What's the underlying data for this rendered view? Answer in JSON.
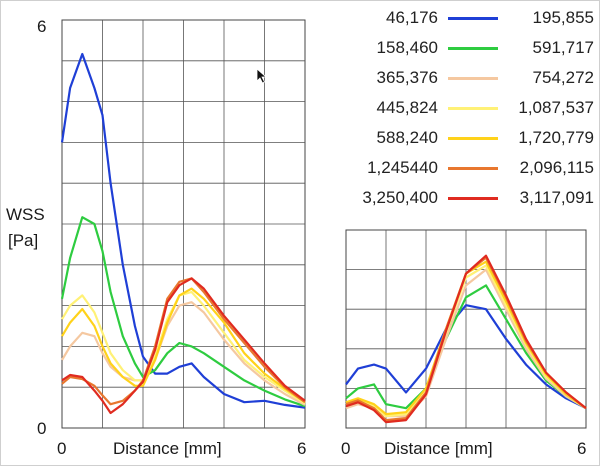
{
  "chart_data": [
    {
      "type": "line",
      "ylabel_lines": [
        "WSS",
        "[Pa]"
      ],
      "xlabel": "Distance [mm]",
      "xlim": [
        0,
        6
      ],
      "ylim": [
        0,
        6
      ],
      "x_tick_labels": [
        "0",
        "6"
      ],
      "y_tick_labels": [
        "0",
        "6"
      ],
      "grid": true,
      "series": [
        {
          "color": "#1f3fd6",
          "x": [
            0,
            0.2,
            0.5,
            0.8,
            1.0,
            1.2,
            1.5,
            1.8,
            2.0,
            2.3,
            2.6,
            2.9,
            3.2,
            3.5,
            4.0,
            4.5,
            5.0,
            5.5,
            6.0
          ],
          "y": [
            4.2,
            5.0,
            5.5,
            5.0,
            4.6,
            3.6,
            2.4,
            1.5,
            1.05,
            0.8,
            0.8,
            0.9,
            0.95,
            0.75,
            0.5,
            0.38,
            0.4,
            0.34,
            0.3
          ]
        },
        {
          "color": "#2ecc40",
          "x": [
            0,
            0.2,
            0.5,
            0.8,
            1.0,
            1.2,
            1.5,
            1.8,
            2.0,
            2.3,
            2.6,
            2.9,
            3.2,
            3.5,
            4.0,
            4.5,
            5.0,
            5.5,
            6.0
          ],
          "y": [
            1.9,
            2.5,
            3.1,
            3.0,
            2.6,
            2.0,
            1.35,
            0.95,
            0.75,
            0.85,
            1.1,
            1.25,
            1.2,
            1.1,
            0.9,
            0.7,
            0.55,
            0.42,
            0.32
          ]
        },
        {
          "color": "#f5c8a0",
          "x": [
            0,
            0.2,
            0.5,
            0.8,
            1.0,
            1.2,
            1.5,
            1.8,
            2.0,
            2.3,
            2.6,
            2.9,
            3.2,
            3.5,
            4.0,
            4.5,
            5.0,
            5.5,
            6.0
          ],
          "y": [
            1.0,
            1.2,
            1.4,
            1.35,
            1.1,
            0.9,
            0.75,
            0.7,
            0.7,
            1.0,
            1.5,
            1.8,
            1.85,
            1.7,
            1.3,
            0.95,
            0.7,
            0.5,
            0.34
          ]
        },
        {
          "color": "#fff176",
          "x": [
            0,
            0.2,
            0.5,
            0.8,
            1.0,
            1.2,
            1.5,
            1.8,
            2.0,
            2.3,
            2.6,
            2.9,
            3.2,
            3.5,
            4.0,
            4.5,
            5.0,
            5.5,
            6.0
          ],
          "y": [
            1.6,
            1.8,
            1.95,
            1.7,
            1.4,
            1.1,
            0.85,
            0.7,
            0.7,
            1.05,
            1.6,
            1.95,
            2.0,
            1.8,
            1.4,
            1.0,
            0.75,
            0.55,
            0.36
          ]
        },
        {
          "color": "#ffd21a",
          "x": [
            0,
            0.2,
            0.5,
            0.8,
            1.0,
            1.2,
            1.5,
            1.8,
            2.0,
            2.3,
            2.6,
            2.9,
            3.2,
            3.5,
            4.0,
            4.5,
            5.0,
            5.5,
            6.0
          ],
          "y": [
            1.35,
            1.55,
            1.75,
            1.5,
            1.2,
            0.95,
            0.75,
            0.62,
            0.62,
            1.0,
            1.55,
            1.95,
            2.05,
            1.9,
            1.55,
            1.1,
            0.8,
            0.58,
            0.38
          ]
        },
        {
          "color": "#e8772e",
          "x": [
            0,
            0.2,
            0.5,
            0.8,
            1.0,
            1.2,
            1.5,
            1.8,
            2.0,
            2.3,
            2.6,
            2.9,
            3.2,
            3.5,
            4.0,
            4.5,
            5.0,
            5.5,
            6.0
          ],
          "y": [
            0.65,
            0.75,
            0.72,
            0.62,
            0.48,
            0.35,
            0.4,
            0.55,
            0.7,
            1.2,
            1.9,
            2.15,
            2.2,
            2.0,
            1.6,
            1.25,
            0.9,
            0.6,
            0.38
          ]
        },
        {
          "color": "#e02b20",
          "x": [
            0,
            0.2,
            0.5,
            0.8,
            1.0,
            1.2,
            1.5,
            1.8,
            2.0,
            2.3,
            2.6,
            2.9,
            3.2,
            3.5,
            4.0,
            4.5,
            5.0,
            5.5,
            6.0
          ],
          "y": [
            0.7,
            0.78,
            0.75,
            0.55,
            0.4,
            0.22,
            0.35,
            0.55,
            0.68,
            1.15,
            1.85,
            2.1,
            2.2,
            2.05,
            1.65,
            1.3,
            0.95,
            0.62,
            0.4
          ]
        }
      ]
    },
    {
      "type": "line",
      "xlabel": "Distance [mm]",
      "xlim": [
        0,
        6
      ],
      "ylim": [
        0,
        1
      ],
      "x_tick_labels": [
        "0",
        "6"
      ],
      "grid": true,
      "series": [
        {
          "color": "#1f3fd6",
          "x": [
            0,
            0.3,
            0.7,
            1.0,
            1.5,
            2.0,
            2.5,
            3.0,
            3.5,
            4.0,
            4.5,
            5.0,
            5.5,
            6.0
          ],
          "y": [
            0.22,
            0.3,
            0.32,
            0.3,
            0.18,
            0.3,
            0.5,
            0.62,
            0.6,
            0.45,
            0.32,
            0.22,
            0.15,
            0.1
          ]
        },
        {
          "color": "#2ecc40",
          "x": [
            0,
            0.3,
            0.7,
            1.0,
            1.5,
            2.0,
            2.5,
            3.0,
            3.5,
            4.0,
            4.5,
            5.0,
            5.5,
            6.0
          ],
          "y": [
            0.15,
            0.2,
            0.22,
            0.12,
            0.1,
            0.2,
            0.45,
            0.66,
            0.72,
            0.55,
            0.38,
            0.24,
            0.16,
            0.1
          ]
        },
        {
          "color": "#f5c8a0",
          "x": [
            0,
            0.3,
            0.7,
            1.0,
            1.5,
            2.0,
            2.5,
            3.0,
            3.5,
            4.0,
            4.5,
            5.0,
            5.5,
            6.0
          ],
          "y": [
            0.1,
            0.12,
            0.1,
            0.06,
            0.06,
            0.16,
            0.45,
            0.72,
            0.8,
            0.6,
            0.4,
            0.25,
            0.16,
            0.1
          ]
        },
        {
          "color": "#fff176",
          "x": [
            0,
            0.3,
            0.7,
            1.0,
            1.5,
            2.0,
            2.5,
            3.0,
            3.5,
            4.0,
            4.5,
            5.0,
            5.5,
            6.0
          ],
          "y": [
            0.12,
            0.14,
            0.11,
            0.06,
            0.07,
            0.18,
            0.48,
            0.76,
            0.82,
            0.62,
            0.42,
            0.26,
            0.17,
            0.1
          ]
        },
        {
          "color": "#ffd21a",
          "x": [
            0,
            0.3,
            0.7,
            1.0,
            1.5,
            2.0,
            2.5,
            3.0,
            3.5,
            4.0,
            4.5,
            5.0,
            5.5,
            6.0
          ],
          "y": [
            0.13,
            0.15,
            0.12,
            0.07,
            0.08,
            0.2,
            0.5,
            0.78,
            0.84,
            0.64,
            0.43,
            0.27,
            0.17,
            0.1
          ]
        },
        {
          "color": "#e8772e",
          "x": [
            0,
            0.3,
            0.7,
            1.0,
            1.5,
            2.0,
            2.5,
            3.0,
            3.5,
            4.0,
            4.5,
            5.0,
            5.5,
            6.0
          ],
          "y": [
            0.12,
            0.14,
            0.1,
            0.04,
            0.05,
            0.18,
            0.5,
            0.78,
            0.86,
            0.66,
            0.44,
            0.28,
            0.18,
            0.1
          ]
        },
        {
          "color": "#e02b20",
          "x": [
            0,
            0.3,
            0.7,
            1.0,
            1.5,
            2.0,
            2.5,
            3.0,
            3.5,
            4.0,
            4.5,
            5.0,
            5.5,
            6.0
          ],
          "y": [
            0.11,
            0.13,
            0.09,
            0.03,
            0.04,
            0.17,
            0.49,
            0.78,
            0.87,
            0.67,
            0.45,
            0.28,
            0.18,
            0.1
          ]
        }
      ]
    }
  ],
  "legend": {
    "rows": [
      {
        "left": "46,176",
        "right": "195,855",
        "color": "#1f3fd6"
      },
      {
        "left": "158,460",
        "right": "591,717",
        "color": "#2ecc40"
      },
      {
        "left": "365,376",
        "right": "754,272",
        "color": "#f5c8a0"
      },
      {
        "left": "445,824",
        "right": "1,087,537",
        "color": "#fff176"
      },
      {
        "left": "588,240",
        "right": "1,720,779",
        "color": "#ffd21a"
      },
      {
        "left": "1,245440",
        "right": "2,096,115",
        "color": "#e8772e"
      },
      {
        "left": "3,250,400",
        "right": "3,117,091",
        "color": "#e02b20"
      }
    ]
  }
}
